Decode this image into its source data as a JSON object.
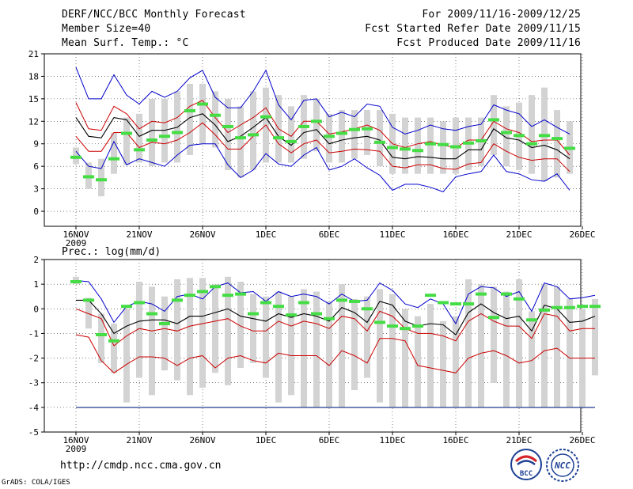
{
  "header": {
    "title": "DERF/NCC/BCC Monthly Forecast",
    "member_size": "Member Size=40",
    "variable": "Mean Surf. Temp.: °C",
    "period": "For 2009/11/16-2009/12/25",
    "started": "Fcst Started Refer Date 2009/11/15",
    "produced": "Fcst Produced Date 2009/11/16"
  },
  "footer": {
    "url": "http://cmdp.ncc.cma.gov.cn",
    "grads": "GrADS: COLA/IGES",
    "logo_bcc": "BCC",
    "logo_ncc": "NCC"
  },
  "colors": {
    "envelope": "#0000cc",
    "spread": "#cc0000",
    "mean": "#000000",
    "observed": "#44dd44",
    "bars": "#d3d3d3",
    "grid": "#333333",
    "baseline": "#1f3a8a"
  },
  "chart_data": [
    {
      "type": "line",
      "title": "Mean Surf. Temp.: °C",
      "x_tick_labels": [
        "16NOV",
        "21NOV",
        "26NOV",
        "1DEC",
        "6DEC",
        "11DEC",
        "16DEC",
        "21DEC",
        "26DEC"
      ],
      "x_year_label": "2009",
      "ylim": [
        -2,
        21
      ],
      "yticks": [
        0,
        3,
        6,
        9,
        12,
        15,
        18,
        21
      ],
      "grid": true,
      "max": [
        19.2,
        15.0,
        15.0,
        18.2,
        15.5,
        14.3,
        16.0,
        15.2,
        16.0,
        17.8,
        18.8,
        15.2,
        13.8,
        13.8,
        16.0,
        18.8,
        14.2,
        12.2,
        14.8,
        15.0,
        12.6,
        13.2,
        12.6,
        14.3,
        14.0,
        11.2,
        10.3,
        10.8,
        11.5,
        11.0,
        10.8,
        11.3,
        11.6,
        14.2,
        13.5,
        13.0,
        11.3,
        12.2,
        11.2,
        10.3
      ],
      "upper": [
        14.5,
        11.0,
        10.8,
        14.0,
        13.0,
        11.0,
        12.0,
        11.8,
        12.5,
        14.0,
        14.8,
        12.5,
        10.5,
        11.5,
        12.5,
        13.8,
        11.0,
        10.0,
        12.0,
        12.0,
        10.3,
        10.6,
        11.0,
        11.5,
        10.8,
        9.0,
        8.5,
        9.0,
        9.3,
        8.8,
        8.5,
        9.5,
        9.5,
        12.0,
        11.0,
        10.5,
        9.3,
        9.5,
        9.5,
        7.5
      ],
      "mean": [
        12.5,
        10.0,
        9.8,
        12.5,
        12.2,
        10.0,
        10.8,
        10.8,
        11.2,
        12.5,
        13.0,
        11.5,
        9.3,
        10.0,
        11.2,
        12.5,
        10.0,
        8.8,
        10.5,
        10.9,
        9.0,
        9.5,
        9.8,
        10.0,
        9.5,
        7.2,
        7.0,
        7.3,
        7.2,
        7.0,
        7.0,
        8.2,
        8.2,
        11.0,
        9.8,
        9.5,
        8.5,
        8.8,
        8.2,
        7.0
      ],
      "lower": [
        10.0,
        8.0,
        8.0,
        10.5,
        10.5,
        8.5,
        9.2,
        9.0,
        9.5,
        10.5,
        11.8,
        10.2,
        8.3,
        8.3,
        10.0,
        11.5,
        9.0,
        7.8,
        9.0,
        9.5,
        7.8,
        8.0,
        8.3,
        8.2,
        8.0,
        6.0,
        5.8,
        6.2,
        6.2,
        5.7,
        5.6,
        6.3,
        6.5,
        9.0,
        8.0,
        7.2,
        6.8,
        7.0,
        7.0,
        5.3
      ],
      "min": [
        8.0,
        6.0,
        5.7,
        9.3,
        6.2,
        7.0,
        6.5,
        6.0,
        7.5,
        8.8,
        9.0,
        9.0,
        6.2,
        4.5,
        5.5,
        7.7,
        6.3,
        6.0,
        7.5,
        8.5,
        5.5,
        6.0,
        7.0,
        5.8,
        4.8,
        2.8,
        3.6,
        3.6,
        3.2,
        2.6,
        4.6,
        5.0,
        5.3,
        7.5,
        5.3,
        5.0,
        4.2,
        4.0,
        5.0,
        2.8
      ],
      "bar_low": [
        6.3,
        3.0,
        2.0,
        5.0,
        6.2,
        6.5,
        6.0,
        6.5,
        6.5,
        7.5,
        9.0,
        8.5,
        5.5,
        4.5,
        5.5,
        6.5,
        6.5,
        6.5,
        7.0,
        8.0,
        6.5,
        6.5,
        7.0,
        7.5,
        6.0,
        5.0,
        5.0,
        5.0,
        5.0,
        5.0,
        5.0,
        5.5,
        6.0,
        7.5,
        6.0,
        5.5,
        5.0,
        4.0,
        4.5,
        5.0
      ],
      "bar_high": [
        8.5,
        6.5,
        7.0,
        10.5,
        12.5,
        13.0,
        15.0,
        15.0,
        16.0,
        17.0,
        17.0,
        16.0,
        15.0,
        14.0,
        16.0,
        16.5,
        15.5,
        14.0,
        15.5,
        15.0,
        13.0,
        13.5,
        13.5,
        13.5,
        13.5,
        13.0,
        12.5,
        12.5,
        12.5,
        12.0,
        12.5,
        12.5,
        12.5,
        15.5,
        14.0,
        14.5,
        15.5,
        16.5,
        13.5,
        12.0
      ],
      "observed": [
        7.2,
        4.6,
        4.2,
        7.0,
        10.4,
        8.2,
        9.5,
        10.0,
        10.5,
        13.4,
        14.3,
        12.8,
        11.3,
        9.8,
        10.2,
        12.6,
        9.8,
        9.3,
        11.3,
        12.0,
        10.0,
        10.4,
        10.9,
        11.0,
        9.2,
        8.5,
        8.3,
        8.1,
        9.0,
        8.9,
        8.6,
        9.1,
        9.4,
        12.2,
        10.5,
        10.1,
        9.0,
        10.1,
        9.7,
        8.4
      ]
    },
    {
      "type": "line",
      "title": "Prec.: log(mm/d)",
      "x_tick_labels": [
        "16NOV",
        "21NOV",
        "26NOV",
        "1DEC",
        "6DEC",
        "11DEC",
        "16DEC",
        "21DEC",
        "26DEC"
      ],
      "x_year_label": "2009",
      "ylim": [
        -5,
        2
      ],
      "yticks": [
        -5,
        -4,
        -3,
        -2,
        -1,
        0,
        1,
        2
      ],
      "grid": true,
      "baseline": -4,
      "max": [
        1.15,
        1.1,
        0.4,
        -0.55,
        0.1,
        0.3,
        0.2,
        -0.1,
        0.5,
        0.6,
        0.4,
        0.9,
        1.05,
        0.65,
        0.7,
        0.3,
        0.7,
        0.5,
        0.6,
        0.5,
        0.2,
        0.6,
        0.3,
        0.35,
        1.05,
        0.75,
        0.2,
        0.05,
        0.4,
        0.2,
        -0.6,
        0.6,
        0.9,
        0.85,
        0.5,
        0.7,
        -0.1,
        1.05,
        0.9,
        0.4,
        0.45,
        0.55
      ],
      "mean": [
        0.35,
        0.35,
        -0.2,
        -1.0,
        -0.7,
        -0.5,
        -0.45,
        -0.45,
        -0.6,
        -0.3,
        -0.3,
        -0.15,
        0.0,
        -0.3,
        -0.4,
        -0.5,
        -0.2,
        -0.35,
        -0.2,
        -0.3,
        -0.5,
        0.05,
        -0.15,
        -0.55,
        0.3,
        0.15,
        -0.5,
        -0.7,
        -0.6,
        -0.65,
        -1.05,
        -0.15,
        0.2,
        -0.15,
        -0.4,
        -0.3,
        -0.9,
        0.15,
        0.0,
        -0.55,
        -0.5,
        -0.3
      ],
      "upper": [
        0.0,
        -0.2,
        -0.4,
        -1.5,
        -1.1,
        -0.8,
        -0.9,
        -0.8,
        -0.9,
        -0.7,
        -0.6,
        -0.5,
        -0.4,
        -0.7,
        -0.9,
        -0.9,
        -0.5,
        -0.7,
        -0.5,
        -0.6,
        -0.8,
        -0.3,
        -0.4,
        -0.9,
        -0.1,
        -0.3,
        -0.8,
        -1.0,
        -1.0,
        -1.1,
        -1.3,
        -0.5,
        -0.2,
        -0.5,
        -0.7,
        -0.7,
        -1.2,
        -0.2,
        -0.3,
        -0.9,
        -0.8,
        -0.8
      ],
      "lower": [
        -1.05,
        -1.15,
        -2.1,
        -2.6,
        -2.25,
        -1.95,
        -1.95,
        -2.0,
        -2.3,
        -2.0,
        -1.9,
        -2.4,
        -2.0,
        -1.9,
        -2.1,
        -2.2,
        -1.8,
        -1.9,
        -1.9,
        -1.9,
        -2.3,
        -1.7,
        -1.9,
        -2.2,
        -1.2,
        -1.2,
        -1.3,
        -2.3,
        -2.4,
        -2.5,
        -2.6,
        -2.0,
        -1.8,
        -1.7,
        -1.9,
        -2.2,
        -2.1,
        -1.7,
        -1.6,
        -2.0,
        -2.0,
        -2.0
      ],
      "bar_low": [
        1.0,
        -0.8,
        -2.2,
        -2.6,
        -3.8,
        -2.8,
        -3.5,
        -2.5,
        -2.9,
        -3.5,
        -3.2,
        -2.6,
        -3.1,
        -2.4,
        -2.2,
        -2.8,
        -3.8,
        -3.5,
        -4.0,
        -4.0,
        -4.0,
        -4.0,
        -3.3,
        -2.8,
        -3.8,
        -4.0,
        -4.0,
        -4.0,
        -4.0,
        -4.0,
        -4.0,
        -4.0,
        -4.0,
        -3.0,
        -4.0,
        -4.0,
        -4.0,
        -4.0,
        -4.0,
        -4.0,
        -4.0,
        -2.7
      ],
      "bar_high": [
        1.3,
        0.45,
        -0.2,
        -0.6,
        0.0,
        1.1,
        0.9,
        0.5,
        1.2,
        1.25,
        1.25,
        1.0,
        1.3,
        1.1,
        0.6,
        0.5,
        0.7,
        0.5,
        0.8,
        0.7,
        0.3,
        1.0,
        0.4,
        0.5,
        0.8,
        0.6,
        0.0,
        -0.3,
        0.2,
        -0.5,
        -0.3,
        1.2,
        1.0,
        0.9,
        0.7,
        1.2,
        -0.1,
        1.0,
        0.9,
        0.4,
        0.0,
        0.4
      ],
      "observed": [
        1.1,
        0.35,
        -1.05,
        -1.3,
        0.1,
        0.25,
        -0.2,
        -0.6,
        0.35,
        0.55,
        0.7,
        0.9,
        0.55,
        0.6,
        -0.2,
        0.25,
        0.1,
        -0.25,
        0.25,
        -0.2,
        -0.4,
        0.35,
        0.3,
        0.0,
        -0.55,
        -0.7,
        -0.8,
        -0.7,
        0.55,
        0.25,
        0.2,
        0.2,
        0.6,
        -0.35,
        0.6,
        0.4,
        -0.45,
        -0.05,
        0.05,
        0.05,
        0.1,
        0.1
      ]
    }
  ]
}
